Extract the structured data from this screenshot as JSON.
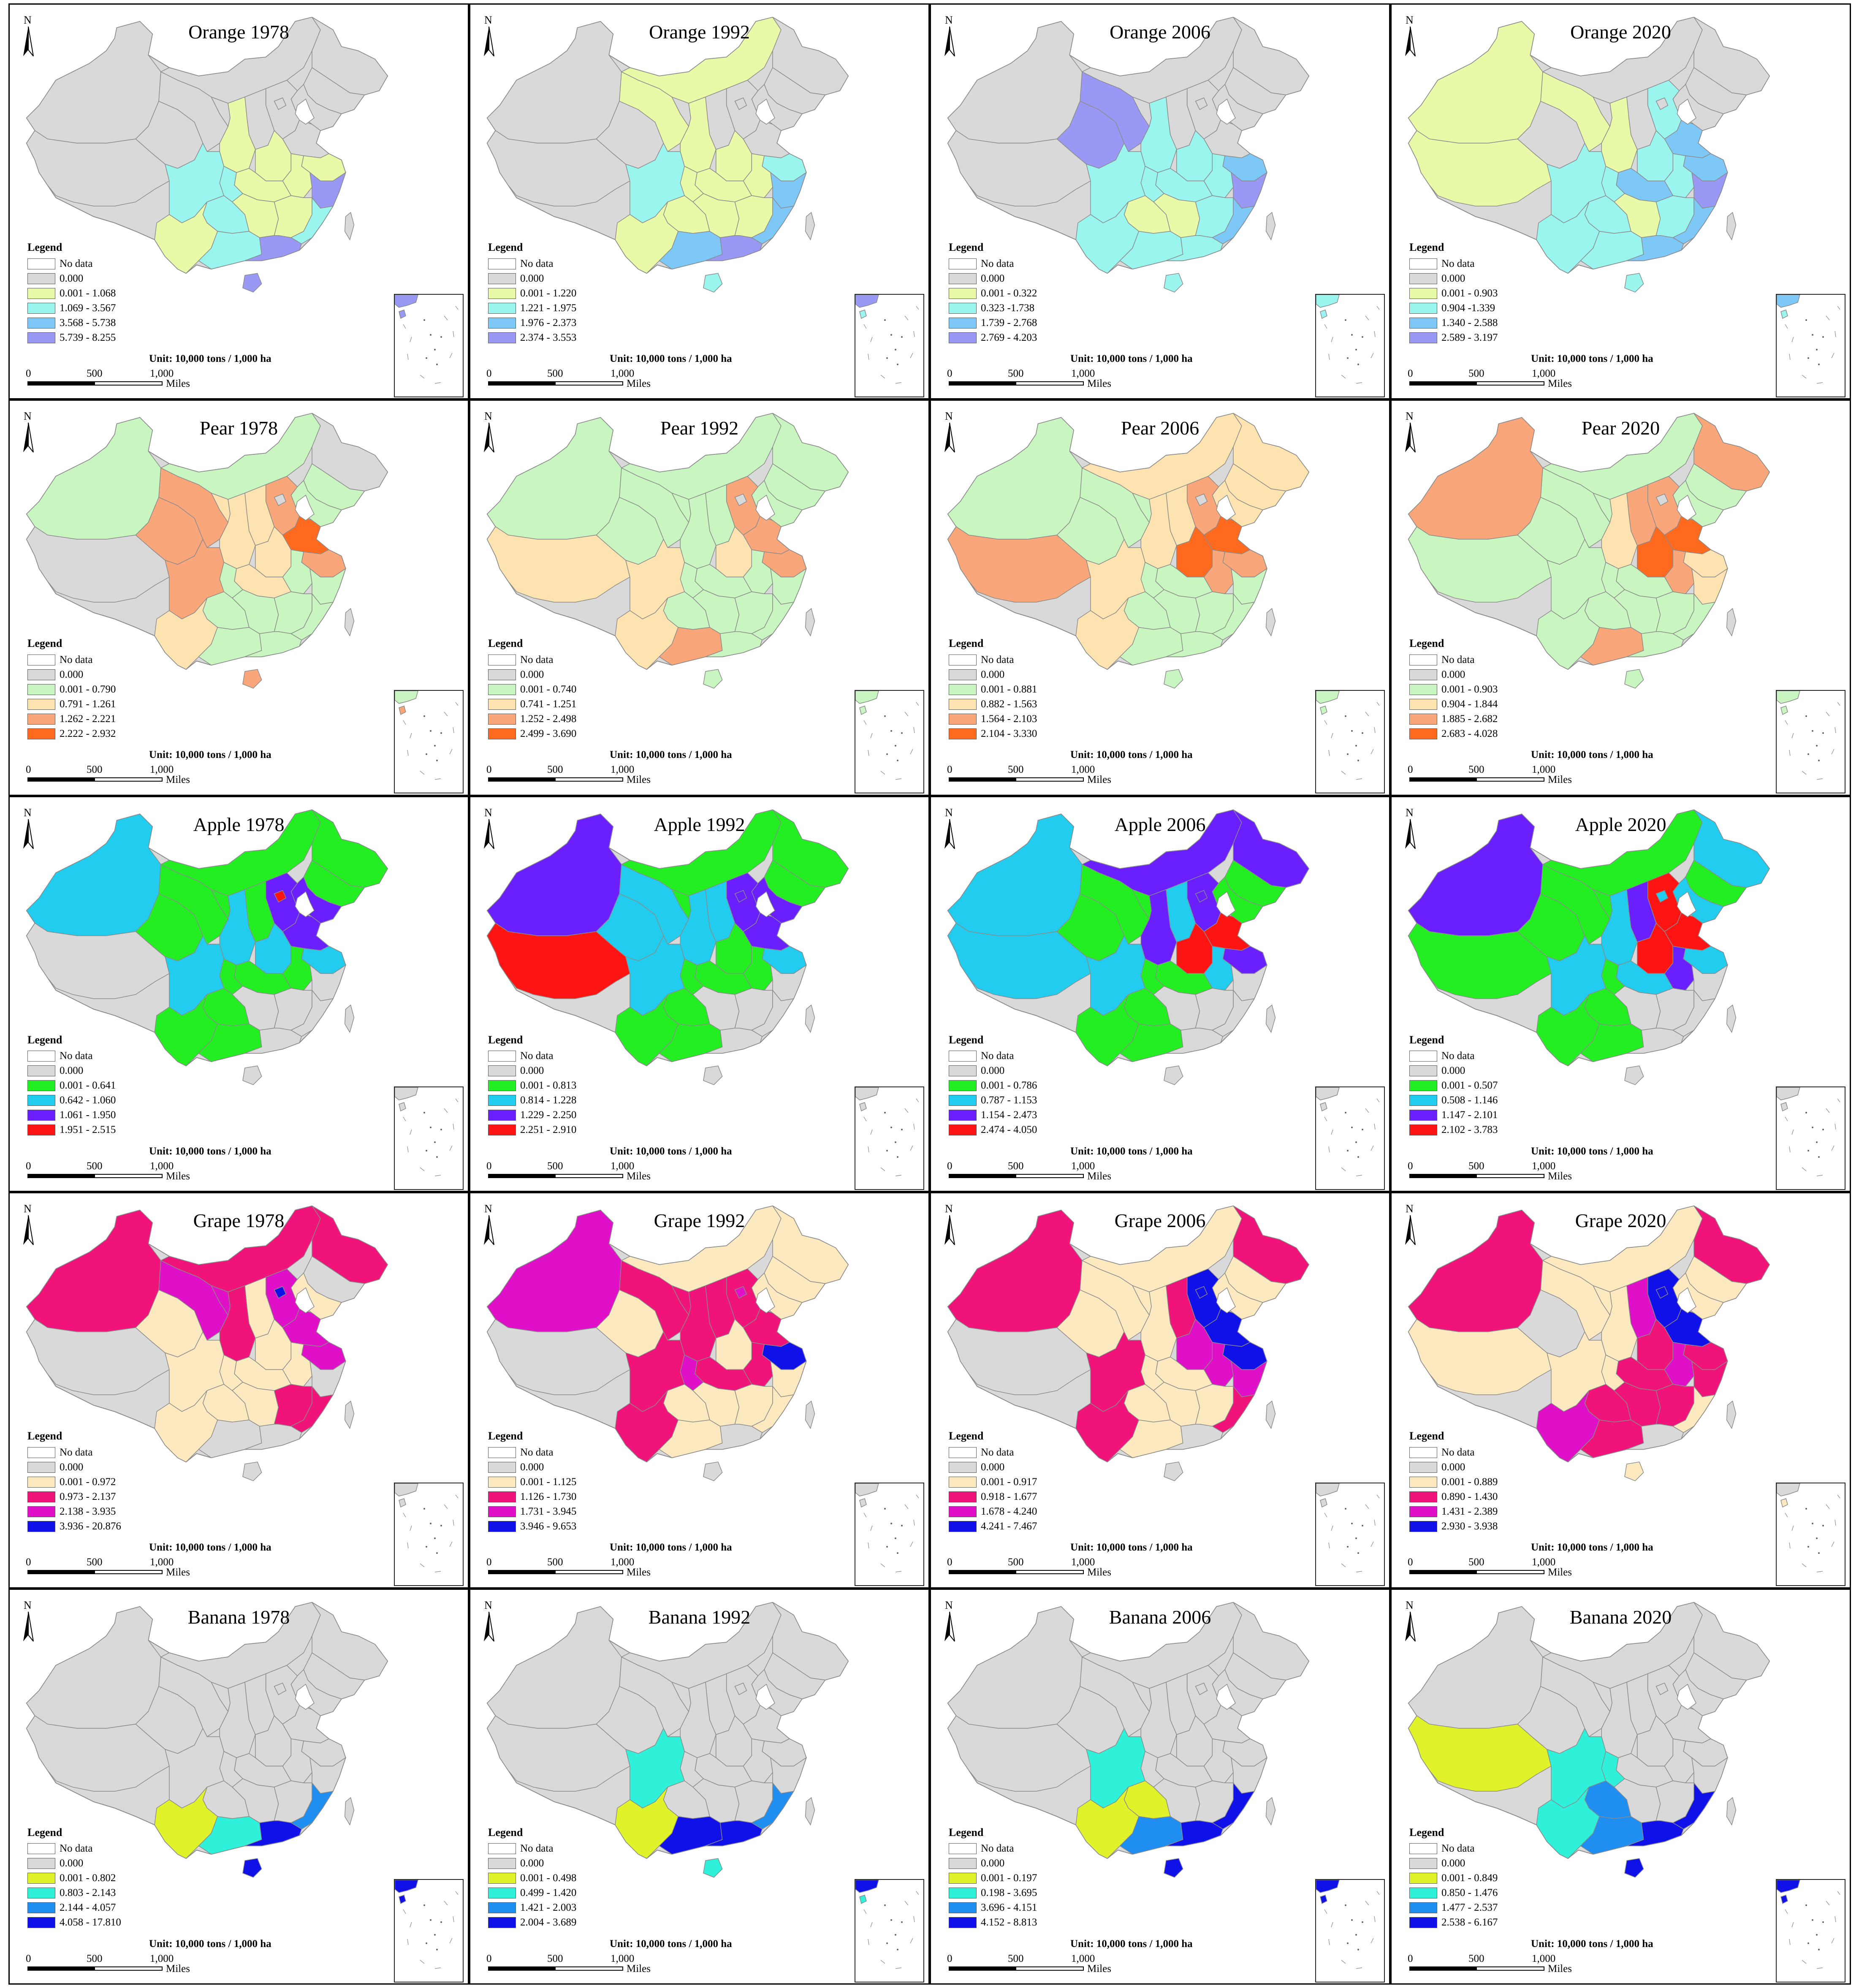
{
  "legend_title": "Legend",
  "unit": "Unit: 10,000 tons / 1,000 ha",
  "scale": {
    "zero": "0",
    "mid": "500",
    "full": "1,000",
    "units": "Miles"
  },
  "north_label": "N",
  "nodata_label": "No data",
  "panels": [
    {
      "title": "Orange 1978",
      "classes": [
        "0.000",
        "0.001 - 1.068",
        "1.069 - 3.567",
        "3.568 - 5.738",
        "5.739 - 8.255"
      ],
      "colors": [
        "#d9d9d9",
        "#e8f9a8",
        "#9af5ef",
        "#7ec8f8",
        "#9999f5"
      ]
    },
    {
      "title": "Orange 1992",
      "classes": [
        "0.000",
        "0.001 - 1.220",
        "1.221 - 1.975",
        "1.976 - 2.373",
        "2.374 - 3.553"
      ],
      "colors": [
        "#d9d9d9",
        "#e8f9a8",
        "#9af5ef",
        "#7ec8f8",
        "#9999f5"
      ]
    },
    {
      "title": "Orange 2006",
      "classes": [
        "0.000",
        "0.001 - 0.322",
        "0.323 -1.738",
        "1.739 - 2.768",
        "2.769 - 4.203"
      ],
      "colors": [
        "#d9d9d9",
        "#e8f9a8",
        "#9af5ef",
        "#7ec8f8",
        "#9999f5"
      ]
    },
    {
      "title": "Orange 2020",
      "classes": [
        "0.000",
        "0.001 - 0.903",
        "0.904 -1.339",
        "1.340 - 2.588",
        "2.589 - 3.197"
      ],
      "colors": [
        "#d9d9d9",
        "#e8f9a8",
        "#9af5ef",
        "#7ec8f8",
        "#9999f5"
      ]
    },
    {
      "title": "Pear 1978",
      "classes": [
        "0.000",
        "0.001 - 0.790",
        "0.791 - 1.261",
        "1.262 - 2.221",
        "2.222 - 2.932"
      ],
      "colors": [
        "#d9d9d9",
        "#c8f5c0",
        "#fde3b0",
        "#f9a67a",
        "#ff6a1f"
      ]
    },
    {
      "title": "Pear 1992",
      "classes": [
        "0.000",
        "0.001 - 0.740",
        "0.741 - 1.251",
        "1.252 - 2.498",
        "2.499 - 3.690"
      ],
      "colors": [
        "#d9d9d9",
        "#c8f5c0",
        "#fde3b0",
        "#f9a67a",
        "#ff6a1f"
      ]
    },
    {
      "title": "Pear 2006",
      "classes": [
        "0.000",
        "0.001 - 0.881",
        "0.882 - 1.563",
        "1.564 - 2.103",
        "2.104 - 3.330"
      ],
      "colors": [
        "#d9d9d9",
        "#c8f5c0",
        "#fde3b0",
        "#f9a67a",
        "#ff6a1f"
      ]
    },
    {
      "title": "Pear 2020",
      "classes": [
        "0.000",
        "0.001 - 0.903",
        "0.904 - 1.844",
        "1.885 - 2.682",
        "2.683 - 4.028"
      ],
      "colors": [
        "#d9d9d9",
        "#c8f5c0",
        "#fde3b0",
        "#f9a67a",
        "#ff6a1f"
      ]
    },
    {
      "title": "Apple 1978",
      "classes": [
        "0.000",
        "0.001 - 0.641",
        "0.642 - 1.060",
        "1.061 - 1.950",
        "1.951 - 2.515"
      ],
      "colors": [
        "#d9d9d9",
        "#22ee22",
        "#22ccee",
        "#6a1fff",
        "#ff1414"
      ]
    },
    {
      "title": "Apple 1992",
      "classes": [
        "0.000",
        "0.001 - 0.813",
        "0.814 - 1.228",
        "1.229 - 2.250",
        "2.251 - 2.910"
      ],
      "colors": [
        "#d9d9d9",
        "#22ee22",
        "#22ccee",
        "#6a1fff",
        "#ff1414"
      ]
    },
    {
      "title": "Apple 2006",
      "classes": [
        "0.000",
        "0.001 - 0.786",
        "0.787 - 1.153",
        "1.154 - 2.473",
        "2.474 - 4.050"
      ],
      "colors": [
        "#d9d9d9",
        "#22ee22",
        "#22ccee",
        "#6a1fff",
        "#ff1414"
      ]
    },
    {
      "title": "Apple 2020",
      "classes": [
        "0.000",
        "0.001 - 0.507",
        "0.508 - 1.146",
        "1.147 - 2.101",
        "2.102 - 3.783"
      ],
      "colors": [
        "#d9d9d9",
        "#22ee22",
        "#22ccee",
        "#6a1fff",
        "#ff1414"
      ]
    },
    {
      "title": "Grape 1978",
      "classes": [
        "0.000",
        "0.001 - 0.972",
        "0.973 - 2.137",
        "2.138 - 3.935",
        "3.936 - 20.876"
      ],
      "colors": [
        "#d9d9d9",
        "#fde9c0",
        "#f0137a",
        "#e010c8",
        "#1010e8"
      ]
    },
    {
      "title": "Grape 1992",
      "classes": [
        "0.000",
        "0.001 - 1.125",
        "1.126 - 1.730",
        "1.731 - 3.945",
        "3.946 - 9.653"
      ],
      "colors": [
        "#d9d9d9",
        "#fde9c0",
        "#f0137a",
        "#e010c8",
        "#1010e8"
      ]
    },
    {
      "title": "Grape 2006",
      "classes": [
        "0.000",
        "0.001 - 0.917",
        "0.918 - 1.677",
        "1.678 - 4.240",
        "4.241 - 7.467"
      ],
      "colors": [
        "#d9d9d9",
        "#fde9c0",
        "#f0137a",
        "#e010c8",
        "#1010e8"
      ]
    },
    {
      "title": "Grape 2020",
      "classes": [
        "0.000",
        "0.001 - 0.889",
        "0.890 - 1.430",
        "1.431 - 2.389",
        "2.930 - 3.938"
      ],
      "colors": [
        "#d9d9d9",
        "#fde9c0",
        "#f0137a",
        "#e010c8",
        "#1010e8"
      ]
    },
    {
      "title": "Banana 1978",
      "classes": [
        "0.000",
        "0.001 - 0.802",
        "0.803 - 2.143",
        "2.144 - 4.057",
        "4.058 - 17.810"
      ],
      "colors": [
        "#d9d9d9",
        "#dff22a",
        "#2ff0d8",
        "#1e8ff0",
        "#1010e8"
      ]
    },
    {
      "title": "Banana 1992",
      "classes": [
        "0.000",
        "0.001 - 0.498",
        "0.499 - 1.420",
        "1.421 - 2.003",
        "2.004 - 3.689"
      ],
      "colors": [
        "#d9d9d9",
        "#dff22a",
        "#2ff0d8",
        "#1e8ff0",
        "#1010e8"
      ]
    },
    {
      "title": "Banana 2006",
      "classes": [
        "0.000",
        "0.001 - 0.197",
        "0.198 - 3.695",
        "3.696 - 4.151",
        "4.152 - 8.813"
      ],
      "colors": [
        "#d9d9d9",
        "#dff22a",
        "#2ff0d8",
        "#1e8ff0",
        "#1010e8"
      ]
    },
    {
      "title": "Banana 2020",
      "classes": [
        "0.000",
        "0.001 - 0.849",
        "0.850 - 1.476",
        "1.477 - 2.537",
        "2.538 - 6.167"
      ],
      "colors": [
        "#d9d9d9",
        "#dff22a",
        "#2ff0d8",
        "#1e8ff0",
        "#1010e8"
      ]
    }
  ]
}
